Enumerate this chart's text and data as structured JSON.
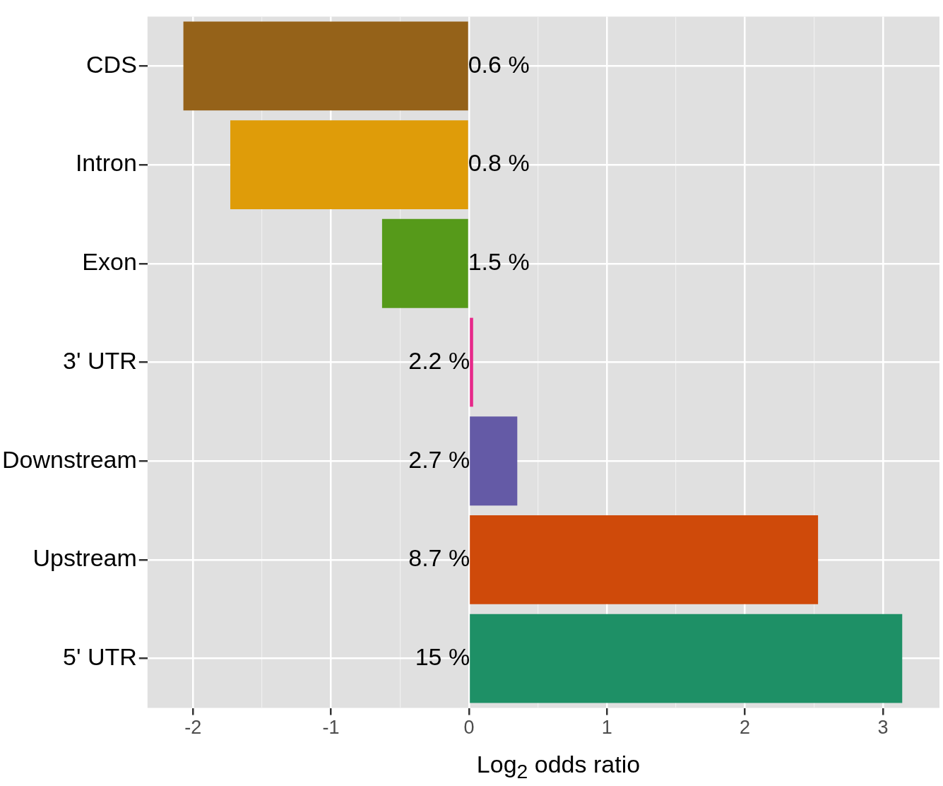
{
  "chart_data": {
    "type": "bar",
    "orientation": "horizontal",
    "xlabel": "Log$_{2}$ odds ratio",
    "categories": [
      "CDS",
      "Intron",
      "Exon",
      "3' UTR",
      "Downstream",
      "Upstream",
      "5' UTR"
    ],
    "values": [
      -2.07,
      -1.73,
      -0.63,
      0.03,
      0.35,
      2.53,
      3.14
    ],
    "colors": [
      "#956219",
      "#df9c09",
      "#569a1a",
      "#e7298a",
      "#645aa6",
      "#cf4a0a",
      "#1e9066"
    ],
    "annotations": [
      "0.6 %",
      "0.8 %",
      "1.5 %",
      "2.2 %",
      "2.7 %",
      "8.7 %",
      "15 %"
    ],
    "xlim": [
      -2.33,
      3.41
    ],
    "xticks": [
      -2,
      {
        "value": -1.5,
        "label": null
      },
      -1,
      {
        "value": -0.5,
        "label": null
      },
      0,
      {
        "value": 0.5,
        "label": null
      },
      1,
      {
        "value": 1.5,
        "label": null
      },
      2,
      {
        "value": 2.5,
        "label": null
      },
      3
    ],
    "grid": true
  }
}
